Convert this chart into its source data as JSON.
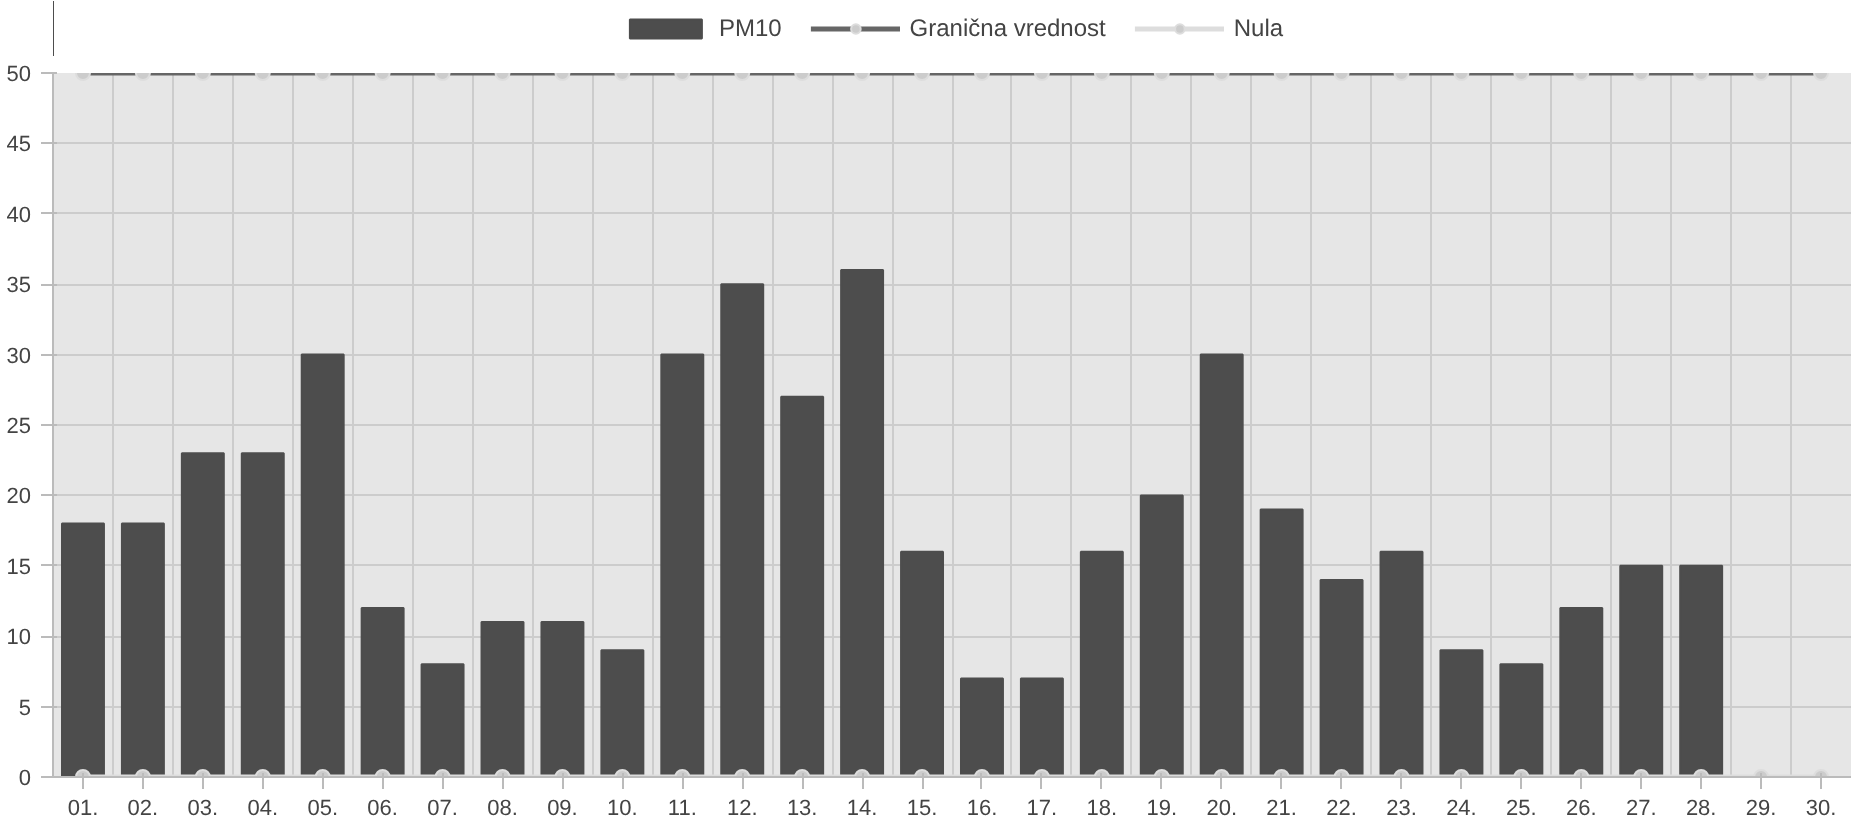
{
  "chart_data": {
    "type": "bar",
    "categories": [
      "01.",
      "02.",
      "03.",
      "04.",
      "05.",
      "06.",
      "07.",
      "08.",
      "09.",
      "10.",
      "11.",
      "12.",
      "13.",
      "14.",
      "15.",
      "16.",
      "17.",
      "18.",
      "19.",
      "20.",
      "21.",
      "22.",
      "23.",
      "24.",
      "25.",
      "26.",
      "27.",
      "28.",
      "29.",
      "30."
    ],
    "series": [
      {
        "name": "PM10",
        "color": "#4d4d4d",
        "values": [
          18,
          18,
          23,
          23,
          30,
          12,
          8,
          11,
          11,
          9,
          30,
          35,
          27,
          36,
          16,
          7,
          7,
          16,
          20,
          30,
          19,
          14,
          16,
          9,
          8,
          12,
          15,
          15,
          null,
          null
        ]
      },
      {
        "name": "Granična vrednost",
        "type": "line",
        "color": "#666666",
        "values": [
          50,
          50,
          50,
          50,
          50,
          50,
          50,
          50,
          50,
          50,
          50,
          50,
          50,
          50,
          50,
          50,
          50,
          50,
          50,
          50,
          50,
          50,
          50,
          50,
          50,
          50,
          50,
          50,
          50,
          50
        ]
      },
      {
        "name": "Nula",
        "type": "line",
        "color": "#dddddd",
        "values": [
          0,
          0,
          0,
          0,
          0,
          0,
          0,
          0,
          0,
          0,
          0,
          0,
          0,
          0,
          0,
          0,
          0,
          0,
          0,
          0,
          0,
          0,
          0,
          0,
          0,
          0,
          0,
          0,
          0,
          0
        ]
      }
    ],
    "ylim": [
      0,
      50
    ],
    "yticks": [
      0,
      5,
      10,
      15,
      20,
      25,
      30,
      35,
      40,
      45,
      50
    ],
    "grid": true,
    "legend": "top",
    "marker": "circle",
    "line_style": "solid"
  }
}
